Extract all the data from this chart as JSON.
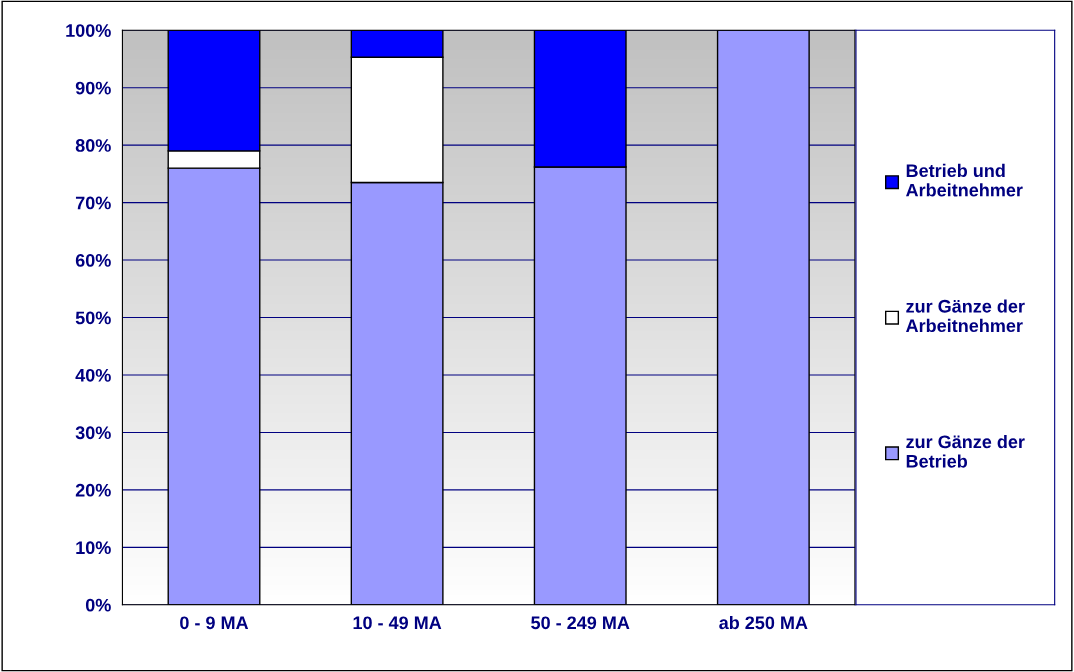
{
  "chart_data": {
    "type": "bar",
    "stacked": true,
    "categories": [
      "0 - 9 MA",
      "10 - 49 MA",
      "50 - 249 MA",
      "ab 250 MA"
    ],
    "series": [
      {
        "name": "zur Gänze der Betrieb",
        "color": "#9999ff",
        "values": [
          76,
          73.5,
          76.2,
          100
        ]
      },
      {
        "name": "zur Gänze der Arbeitnehmer",
        "color": "#ffffff",
        "values": [
          3,
          21.8,
          0,
          0
        ]
      },
      {
        "name": "Betrieb und Arbeitnehmer",
        "color": "#0000ff",
        "values": [
          21,
          4.7,
          23.8,
          0
        ]
      }
    ],
    "ylim": [
      0,
      100
    ],
    "yticks": [
      {
        "value": 0,
        "label": "0%"
      },
      {
        "value": 10,
        "label": "10%"
      },
      {
        "value": 20,
        "label": "20%"
      },
      {
        "value": 30,
        "label": "30%"
      },
      {
        "value": 40,
        "label": "40%"
      },
      {
        "value": 50,
        "label": "50%"
      },
      {
        "value": 60,
        "label": "60%"
      },
      {
        "value": 70,
        "label": "70%"
      },
      {
        "value": 80,
        "label": "80%"
      },
      {
        "value": 90,
        "label": "90%"
      },
      {
        "value": 100,
        "label": "100%"
      }
    ],
    "grid": "y",
    "legend": "right"
  }
}
